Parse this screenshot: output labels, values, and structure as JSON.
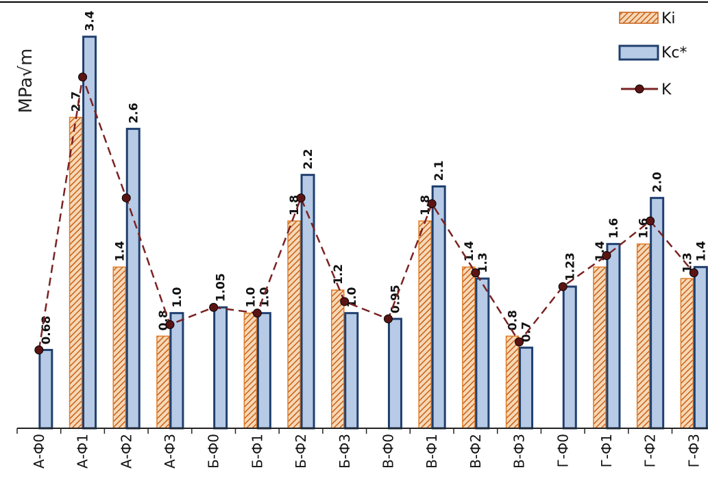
{
  "chart_data": {
    "type": "bar",
    "ylabel": "MPa√m",
    "ylim": [
      0,
      3.6
    ],
    "grid": false,
    "legend_position": "top-right",
    "categories": [
      "А-Ф0",
      "А-Ф1",
      "А-Ф2",
      "А-Ф3",
      "Б-Ф0",
      "Б-Ф1",
      "Б-Ф2",
      "Б-Ф3",
      "В-Ф0",
      "В-Ф1",
      "В-Ф2",
      "В-Ф3",
      "Г-Ф0",
      "Г-Ф1",
      "Г-Ф2",
      "Г-Ф3"
    ],
    "series": [
      {
        "name": "Ki",
        "kind": "bar",
        "pattern": "hatched",
        "color": "#e07b25",
        "values": [
          null,
          2.7,
          1.4,
          0.8,
          null,
          1.0,
          1.8,
          1.2,
          null,
          1.8,
          1.4,
          0.8,
          null,
          1.4,
          1.6,
          1.3
        ],
        "labels": [
          null,
          "2.7",
          "1.4",
          "0.8",
          null,
          "1.0",
          "1.8",
          "1.2",
          null,
          "1.8",
          "1.4",
          "0.8",
          null,
          "1.4",
          "1.6",
          "1.3"
        ]
      },
      {
        "name": "Kc*",
        "kind": "bar",
        "color": "#b7cbe6",
        "edge_color": "#1f3f6e",
        "values": [
          0.68,
          3.4,
          2.6,
          1.0,
          1.05,
          1.0,
          2.2,
          1.0,
          0.95,
          2.1,
          1.3,
          0.7,
          1.23,
          1.6,
          2.0,
          1.4
        ],
        "labels": [
          "0.68",
          "3.4",
          "2.6",
          "1.0",
          "1.05",
          "1.0",
          "2.2",
          "1.0",
          "0.95",
          "2.1",
          "1.3",
          "0.7",
          "1.23",
          "1.6",
          "2.0",
          "1.4"
        ]
      },
      {
        "name": "K",
        "kind": "line",
        "line_style": "dashed",
        "color": "#7a2222",
        "marker_color": "#5a1414",
        "values": [
          0.68,
          3.05,
          2.0,
          0.9,
          1.05,
          1.0,
          2.0,
          1.1,
          0.95,
          1.95,
          1.35,
          0.75,
          1.23,
          1.5,
          1.8,
          1.35
        ]
      }
    ]
  }
}
